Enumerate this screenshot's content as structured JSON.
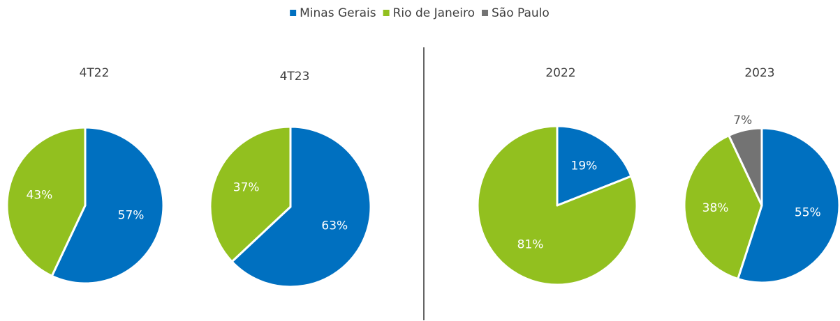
{
  "legend": {
    "names": [
      "Minas Gerais",
      "Rio de Janeiro",
      "São Paulo"
    ],
    "colors": [
      "#0070c0",
      "#92c01f",
      "#737373"
    ]
  },
  "chart_data": [
    {
      "type": "pie",
      "title": "4T22",
      "values": [
        57,
        43,
        0
      ],
      "value_labels": [
        "57%",
        "43%",
        null
      ]
    },
    {
      "type": "pie",
      "title": "4T23",
      "values": [
        63,
        37,
        0
      ],
      "value_labels": [
        "63%",
        "37%",
        null
      ]
    },
    {
      "type": "pie",
      "title": "2022",
      "values": [
        19,
        81,
        0
      ],
      "value_labels": [
        "19%",
        "81%",
        null
      ]
    },
    {
      "type": "pie",
      "title": "2023",
      "values": [
        55,
        38,
        7
      ],
      "value_labels": [
        "55%",
        "38%",
        "7%"
      ]
    }
  ]
}
